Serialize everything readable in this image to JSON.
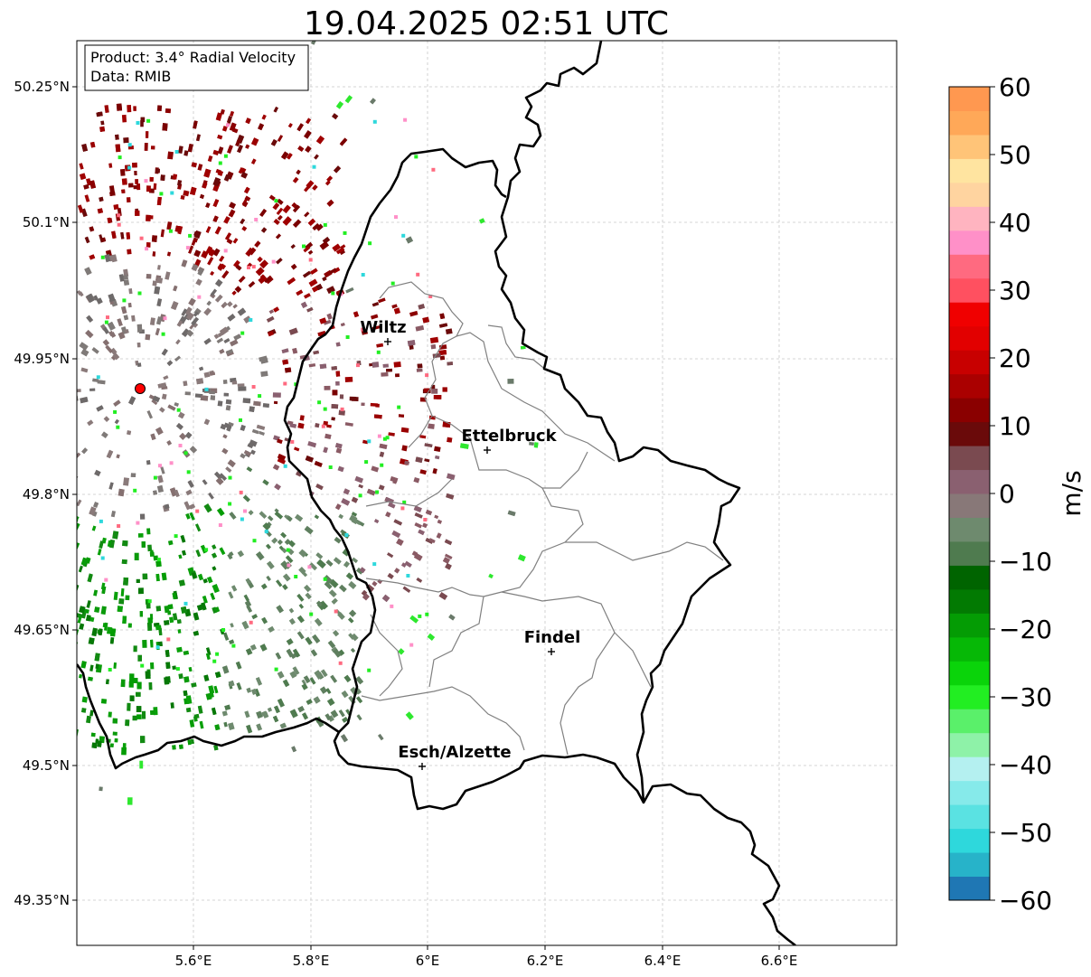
{
  "title": "19.04.2025 02:51 UTC",
  "info_box": {
    "product": "Product: 3.4° Radial Velocity",
    "data": "Data: RMIB"
  },
  "lon_ticks": [
    "5.6°E",
    "5.8°E",
    "6°E",
    "6.2°E",
    "6.4°E",
    "6.6°E"
  ],
  "lat_ticks": [
    "50.25°N",
    "50.1°N",
    "49.95°N",
    "49.8°N",
    "49.65°N",
    "49.5°N",
    "49.35°N"
  ],
  "cities": [
    {
      "name": "Wiltz"
    },
    {
      "name": "Ettelbruck"
    },
    {
      "name": "Findel"
    },
    {
      "name": "Esch/Alzette"
    }
  ],
  "colorbar": {
    "label": "m/s",
    "ticks": [
      "60",
      "50",
      "40",
      "30",
      "20",
      "10",
      "0",
      "−10",
      "−20",
      "−30",
      "−40",
      "−50",
      "−60"
    ],
    "min": -60,
    "max": 60,
    "colors": [
      "#1f77b4",
      "#27b3c9",
      "#2ed8dc",
      "#5ae2e2",
      "#86eaea",
      "#b4f0f0",
      "#8ef2a8",
      "#5af06a",
      "#22ee22",
      "#0ad40a",
      "#06b806",
      "#049c04",
      "#027a02",
      "#006400",
      "#4f7b4f",
      "#6e8a6e",
      "#887878",
      "#8a6070",
      "#7a4a50",
      "#6a0a0a",
      "#8a0000",
      "#aa0000",
      "#c80000",
      "#e20000",
      "#f00000",
      "#ff5060",
      "#ff6a80",
      "#ff90c8",
      "#ffb4c0",
      "#ffd4a0",
      "#ffe4a0",
      "#ffc478",
      "#ffa858",
      "#ff9850"
    ]
  },
  "radar": {
    "color": "#ff0000"
  }
}
